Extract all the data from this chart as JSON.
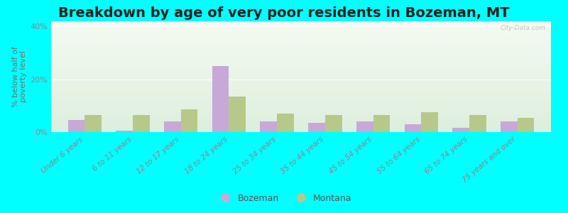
{
  "title": "Breakdown by age of very poor residents in Bozeman, MT",
  "categories": [
    "Under 6 years",
    "6 to 11 years",
    "12 to 17 years",
    "18 to 24 years",
    "25 to 34 years",
    "35 to 44 years",
    "45 to 54 years",
    "55 to 64 years",
    "65 to 74 years",
    "75 years and over"
  ],
  "bozeman_values": [
    4.5,
    0.5,
    4.0,
    25.0,
    4.0,
    3.5,
    4.0,
    3.0,
    1.5,
    4.0
  ],
  "montana_values": [
    6.5,
    6.5,
    8.5,
    13.5,
    7.0,
    6.5,
    6.5,
    7.5,
    6.5,
    5.5
  ],
  "bozeman_color": "#c8a8d8",
  "montana_color": "#b8c88a",
  "ylabel": "% below half of\npoverty level",
  "ylim": [
    0,
    42
  ],
  "yticks": [
    0,
    20,
    40
  ],
  "ytick_labels": [
    "0%",
    "20%",
    "40%"
  ],
  "background_color": "#00ffff",
  "plot_bg_top": "#f4faf0",
  "plot_bg_bottom": "#ddeedd",
  "title_fontsize": 14,
  "axis_label_fontsize": 8,
  "tick_fontsize": 7.5,
  "legend_labels": [
    "Bozeman",
    "Montana"
  ],
  "watermark": "City-Data.com",
  "bar_width": 0.35
}
